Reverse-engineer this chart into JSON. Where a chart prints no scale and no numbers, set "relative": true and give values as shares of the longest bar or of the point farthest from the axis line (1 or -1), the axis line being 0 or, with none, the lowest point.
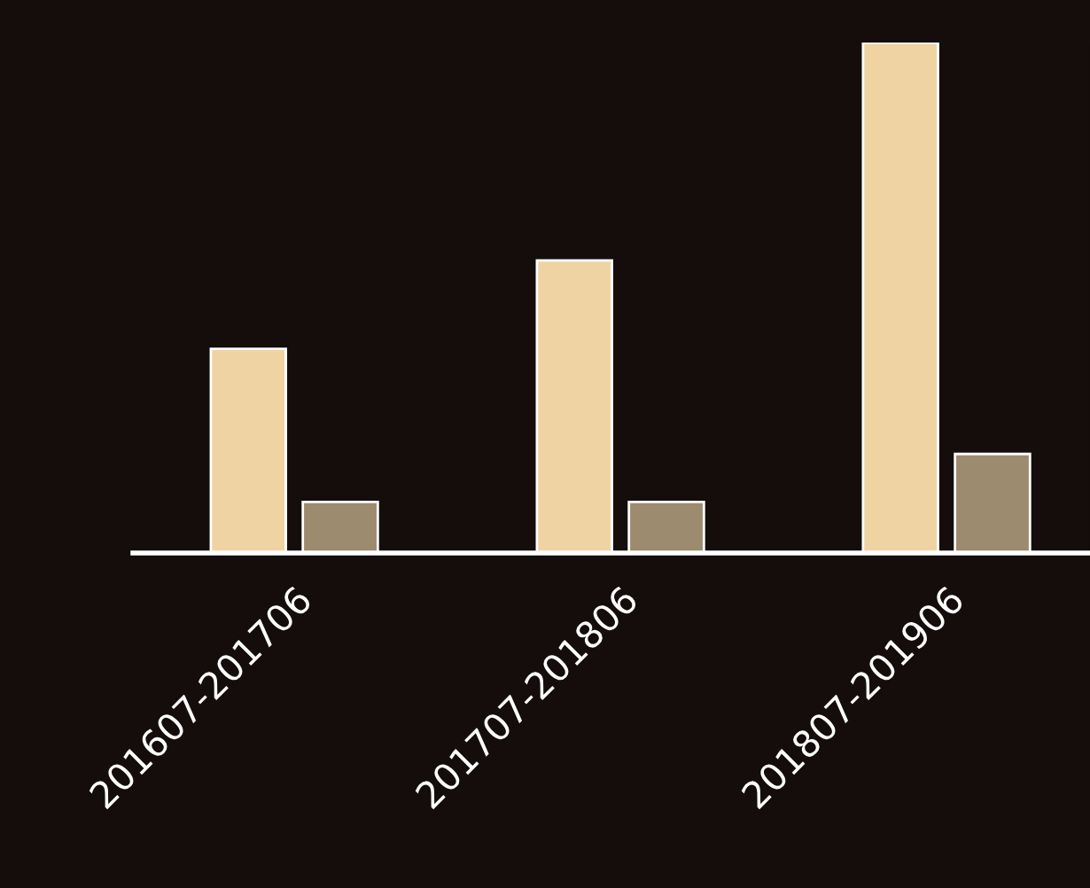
{
  "chart_data": {
    "type": "bar",
    "relative": true,
    "categories": [
      "201607-201706",
      "201707-201806",
      "201807-201906"
    ],
    "series": [
      {
        "color": "#efd3a3",
        "values": [
          0.4,
          0.573,
          1
        ]
      },
      {
        "color": "#9c8b6e",
        "values": [
          0.1,
          0.1,
          0.194
        ]
      }
    ],
    "grid": false,
    "legend": false
  }
}
